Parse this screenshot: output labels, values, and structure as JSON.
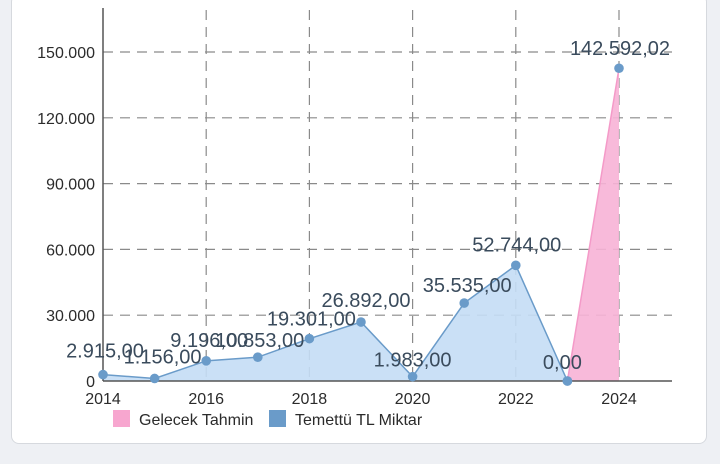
{
  "chart_data": {
    "type": "area",
    "x": [
      2014,
      2015,
      2016,
      2017,
      2018,
      2019,
      2020,
      2021,
      2022,
      2023,
      2024
    ],
    "x_tick_labels": [
      "2014",
      "2016",
      "2018",
      "2020",
      "2022",
      "2024"
    ],
    "y_tick_labels": [
      "0",
      "30.000",
      "60.000",
      "90.000",
      "120.000",
      "150.000"
    ],
    "ylim": [
      0,
      150000
    ],
    "grid": true,
    "legend_position": "bottom-left",
    "series": [
      {
        "name": "Temettü TL Miktar",
        "color": "#6a9bc9",
        "fill": "#c4ddf5",
        "x": [
          2014,
          2015,
          2016,
          2017,
          2018,
          2019,
          2020,
          2021,
          2022,
          2023
        ],
        "values": [
          2915,
          1156,
          9196,
          10853,
          19301,
          26892,
          1983,
          35535,
          52744,
          0
        ],
        "labels": [
          "2.915,00",
          "1.156,00",
          "9.196,00",
          "10.853,00",
          "19.301,00",
          "26.892,00",
          "1.983,00",
          "35.535,00",
          "52.744,00",
          null
        ]
      },
      {
        "name": "Gelecek Tahmin",
        "color": "#f49ac8",
        "fill": "#f7b3d6",
        "x": [
          2023,
          2024
        ],
        "values": [
          0,
          142592.02
        ],
        "labels": [
          "0,00",
          "142.592,02"
        ]
      }
    ]
  }
}
